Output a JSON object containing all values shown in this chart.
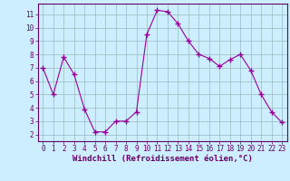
{
  "x": [
    0,
    1,
    2,
    3,
    4,
    5,
    6,
    7,
    8,
    9,
    10,
    11,
    12,
    13,
    14,
    15,
    16,
    17,
    18,
    19,
    20,
    21,
    22,
    23
  ],
  "y": [
    7.0,
    5.0,
    7.8,
    6.5,
    3.9,
    2.2,
    2.2,
    3.0,
    3.0,
    3.7,
    9.5,
    11.3,
    11.2,
    10.3,
    9.0,
    8.0,
    7.7,
    7.1,
    7.6,
    8.0,
    6.8,
    5.0,
    3.7,
    2.9
  ],
  "line_color": "#990099",
  "marker": "+",
  "marker_size": 4,
  "marker_linewidth": 1.0,
  "linewidth": 0.8,
  "xlabel": "Windchill (Refroidissement éolien,°C)",
  "xlabel_fontsize": 6.5,
  "bg_color": "#cceeff",
  "grid_color": "#99bbbb",
  "spine_color": "#660066",
  "tick_color": "#660066",
  "label_color": "#660066",
  "xlim": [
    -0.5,
    23.5
  ],
  "ylim": [
    1.5,
    11.8
  ],
  "yticks": [
    2,
    3,
    4,
    5,
    6,
    7,
    8,
    9,
    10,
    11
  ],
  "xticks": [
    0,
    1,
    2,
    3,
    4,
    5,
    6,
    7,
    8,
    9,
    10,
    11,
    12,
    13,
    14,
    15,
    16,
    17,
    18,
    19,
    20,
    21,
    22,
    23
  ],
  "tick_fontsize": 5.5
}
